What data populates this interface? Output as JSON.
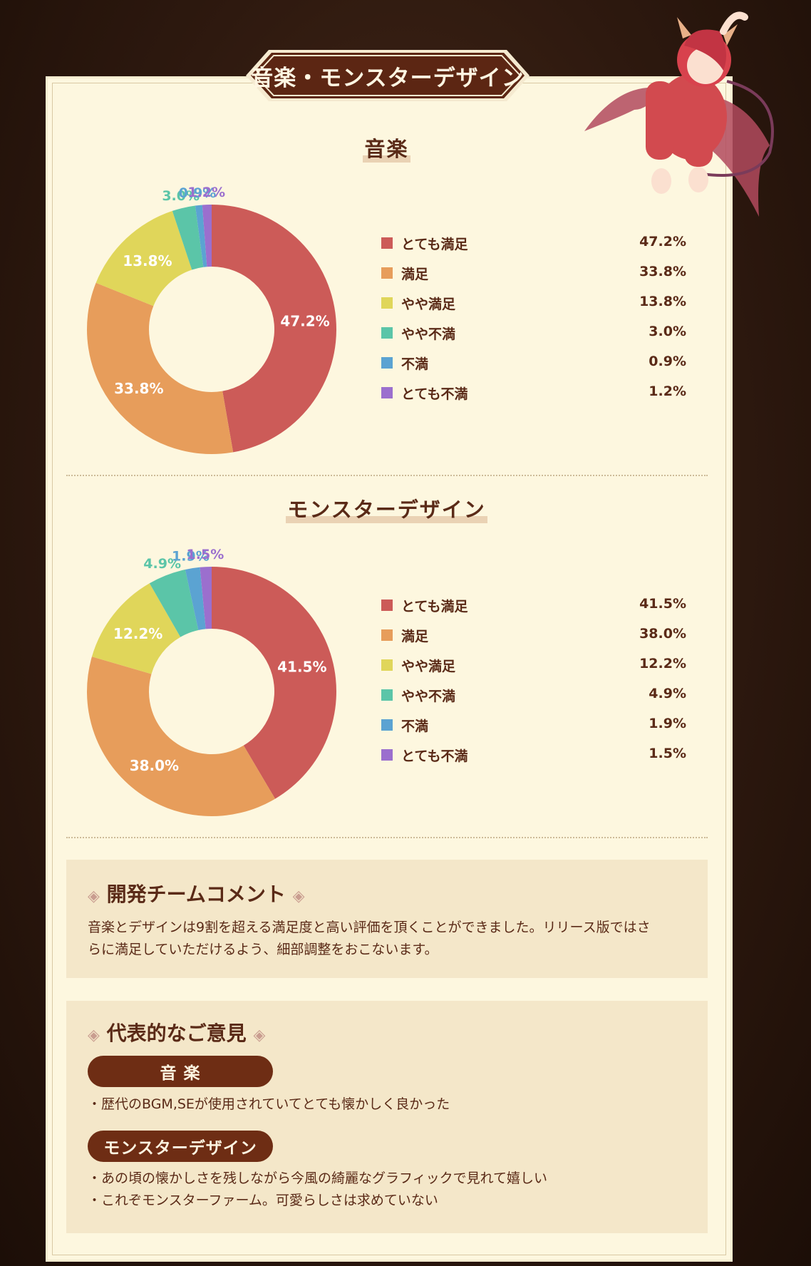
{
  "page_title": "音楽・モンスターデザイン",
  "colors": {
    "very_satisfied": "#cc5b58",
    "satisfied": "#e79d5b",
    "somewhat_satisfied": "#e0d65a",
    "somewhat_dissatisfied": "#5bc5a8",
    "dissatisfied": "#5ba3d2",
    "very_dissatisfied": "#9b6fce"
  },
  "chart_data": [
    {
      "type": "pie",
      "title": "音楽",
      "categories": [
        "とても満足",
        "満足",
        "やや満足",
        "やや不満",
        "不満",
        "とても不満"
      ],
      "values": [
        47.2,
        33.8,
        13.8,
        3.0,
        0.9,
        1.2
      ],
      "value_labels": [
        "47.2%",
        "33.8%",
        "13.8%",
        "3.0%",
        "0.9%",
        "1.2%"
      ],
      "legend_placement": "right"
    },
    {
      "type": "pie",
      "title": "モンスターデザイン",
      "categories": [
        "とても満足",
        "満足",
        "やや満足",
        "やや不満",
        "不満",
        "とても不満"
      ],
      "values": [
        41.5,
        38.0,
        12.2,
        4.9,
        1.9,
        1.5
      ],
      "value_labels": [
        "41.5%",
        "38.0%",
        "12.2%",
        "4.9%",
        "1.9%",
        "1.5%"
      ],
      "legend_placement": "right"
    }
  ],
  "dev_comment": {
    "heading": "開発チームコメント",
    "diamond": "◈",
    "line1": "音楽とデザインは9割を超える満足度と高い評価を頂くことができました。リリース版ではさ",
    "line2": "らに満足していただけるよう、細部調整をおこないます。"
  },
  "opinions": {
    "heading": "代表的なご意見",
    "music_label": "音 楽",
    "music_items": [
      "・歴代のBGM,SEが使用されていてとても懐かしく良かった"
    ],
    "design_label": "モンスターデザイン",
    "design_items": [
      "・あの頃の懐かしさを残しながら今風の綺麗なグラフィックで見れて嬉しい",
      "・これぞモンスターファーム。可愛らしさは求めていない"
    ]
  }
}
